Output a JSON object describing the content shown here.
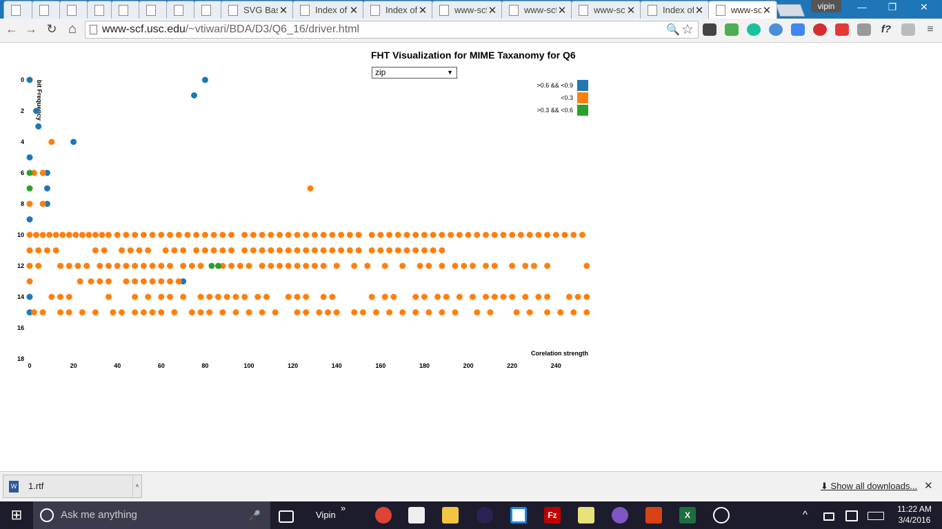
{
  "browser": {
    "tabs": [
      {
        "label": "",
        "active": false
      },
      {
        "label": "",
        "active": false
      },
      {
        "label": "",
        "active": false
      },
      {
        "label": "",
        "active": false
      },
      {
        "label": "",
        "active": false
      },
      {
        "label": "",
        "active": false
      },
      {
        "label": "",
        "active": false
      },
      {
        "label": "",
        "active": false
      },
      {
        "label": "SVG Basi",
        "active": false
      },
      {
        "label": "Index of",
        "active": false
      },
      {
        "label": "Index of",
        "active": false
      },
      {
        "label": "www-scf",
        "active": false
      },
      {
        "label": "www-scf",
        "active": false
      },
      {
        "label": "www-scf",
        "active": false
      },
      {
        "label": "Index of",
        "active": false
      },
      {
        "label": "www-scf",
        "active": true
      }
    ],
    "close_glyph": "✕",
    "profile": "vipin",
    "window_controls": {
      "minimize": "—",
      "maximize": "❐",
      "close": "✕"
    },
    "nav": {
      "back": "←",
      "forward": "→",
      "reload": "↻",
      "home": "⌂"
    },
    "url_host": "www-scf.usc.edu",
    "url_path": "/~vtiwari/BDA/D3/Q6_16/driver.html",
    "omnibox_icons": {
      "zoom": "🔍",
      "star": "☆"
    },
    "extensions": [
      "pocket-icon",
      "drive-icon",
      "grammarly-icon",
      "clock-extension-icon",
      "translate-icon",
      "opera-icon",
      "adblock-icon",
      "dropper-icon",
      "formula-icon",
      "notes-icon",
      "menu-icon"
    ],
    "formula_ext_label": "f?"
  },
  "page": {
    "title": "FHT Visualization for MIME Taxanomy for Q6",
    "select": {
      "value": "zip",
      "arrow": "▼"
    }
  },
  "chart_data": {
    "type": "scatter",
    "xlabel": "Corelation strength",
    "ylabel": "bit Frequency",
    "xlim": [
      0,
      255
    ],
    "ylim": [
      0,
      18
    ],
    "y_inverted": true,
    "xticks": [
      "0",
      "20",
      "40",
      "60",
      "80",
      "100",
      "120",
      "140",
      "160",
      "180",
      "200",
      "220",
      "240"
    ],
    "yticks": [
      "0",
      "2",
      "4",
      "6",
      "8",
      "10",
      "12",
      "14",
      "16",
      "18"
    ],
    "legend": [
      {
        "label": ">0.6 && <0.9",
        "color": "#1f77b4"
      },
      {
        "label": "<0.3",
        "color": "#ff7f0e"
      },
      {
        "label": ">0.3 && <0.6",
        "color": "#2ca02c"
      }
    ],
    "series": [
      {
        "name": ">0.6 && <0.9",
        "color": "#1f77b4",
        "points": [
          [
            0,
            0
          ],
          [
            80,
            0
          ],
          [
            75,
            1
          ],
          [
            3,
            2
          ],
          [
            4,
            3
          ],
          [
            20,
            4
          ],
          [
            0,
            5
          ],
          [
            8,
            6
          ],
          [
            8,
            7
          ],
          [
            8,
            8
          ],
          [
            0,
            9
          ],
          [
            70,
            13
          ],
          [
            0,
            14
          ],
          [
            0,
            15
          ]
        ]
      },
      {
        "name": "<0.3",
        "color": "#ff7f0e",
        "points": [
          [
            10,
            4
          ],
          [
            2,
            6
          ],
          [
            6,
            6
          ],
          [
            0,
            8
          ],
          [
            6,
            8
          ],
          [
            128,
            7
          ],
          [
            0,
            10
          ],
          [
            3,
            10
          ],
          [
            6,
            10
          ],
          [
            9,
            10
          ],
          [
            12,
            10
          ],
          [
            15,
            10
          ],
          [
            18,
            10
          ],
          [
            21,
            10
          ],
          [
            24,
            10
          ],
          [
            27,
            10
          ],
          [
            30,
            10
          ],
          [
            33,
            10
          ],
          [
            36,
            10
          ],
          [
            40,
            10
          ],
          [
            44,
            10
          ],
          [
            48,
            10
          ],
          [
            52,
            10
          ],
          [
            56,
            10
          ],
          [
            60,
            10
          ],
          [
            64,
            10
          ],
          [
            68,
            10
          ],
          [
            72,
            10
          ],
          [
            76,
            10
          ],
          [
            80,
            10
          ],
          [
            84,
            10
          ],
          [
            88,
            10
          ],
          [
            92,
            10
          ],
          [
            98,
            10
          ],
          [
            102,
            10
          ],
          [
            106,
            10
          ],
          [
            110,
            10
          ],
          [
            114,
            10
          ],
          [
            118,
            10
          ],
          [
            122,
            10
          ],
          [
            126,
            10
          ],
          [
            130,
            10
          ],
          [
            134,
            10
          ],
          [
            138,
            10
          ],
          [
            142,
            10
          ],
          [
            146,
            10
          ],
          [
            150,
            10
          ],
          [
            156,
            10
          ],
          [
            160,
            10
          ],
          [
            164,
            10
          ],
          [
            168,
            10
          ],
          [
            172,
            10
          ],
          [
            176,
            10
          ],
          [
            180,
            10
          ],
          [
            184,
            10
          ],
          [
            188,
            10
          ],
          [
            192,
            10
          ],
          [
            196,
            10
          ],
          [
            200,
            10
          ],
          [
            204,
            10
          ],
          [
            208,
            10
          ],
          [
            212,
            10
          ],
          [
            216,
            10
          ],
          [
            220,
            10
          ],
          [
            224,
            10
          ],
          [
            228,
            10
          ],
          [
            232,
            10
          ],
          [
            236,
            10
          ],
          [
            240,
            10
          ],
          [
            244,
            10
          ],
          [
            248,
            10
          ],
          [
            252,
            10
          ],
          [
            0,
            11
          ],
          [
            4,
            11
          ],
          [
            8,
            11
          ],
          [
            12,
            11
          ],
          [
            30,
            11
          ],
          [
            34,
            11
          ],
          [
            42,
            11
          ],
          [
            46,
            11
          ],
          [
            50,
            11
          ],
          [
            54,
            11
          ],
          [
            62,
            11
          ],
          [
            66,
            11
          ],
          [
            70,
            11
          ],
          [
            76,
            11
          ],
          [
            80,
            11
          ],
          [
            84,
            11
          ],
          [
            88,
            11
          ],
          [
            92,
            11
          ],
          [
            98,
            11
          ],
          [
            102,
            11
          ],
          [
            106,
            11
          ],
          [
            110,
            11
          ],
          [
            114,
            11
          ],
          [
            118,
            11
          ],
          [
            122,
            11
          ],
          [
            126,
            11
          ],
          [
            130,
            11
          ],
          [
            134,
            11
          ],
          [
            138,
            11
          ],
          [
            142,
            11
          ],
          [
            146,
            11
          ],
          [
            150,
            11
          ],
          [
            156,
            11
          ],
          [
            160,
            11
          ],
          [
            164,
            11
          ],
          [
            168,
            11
          ],
          [
            172,
            11
          ],
          [
            176,
            11
          ],
          [
            180,
            11
          ],
          [
            184,
            11
          ],
          [
            188,
            11
          ],
          [
            0,
            12
          ],
          [
            4,
            12
          ],
          [
            14,
            12
          ],
          [
            18,
            12
          ],
          [
            22,
            12
          ],
          [
            26,
            12
          ],
          [
            32,
            12
          ],
          [
            36,
            12
          ],
          [
            40,
            12
          ],
          [
            44,
            12
          ],
          [
            48,
            12
          ],
          [
            52,
            12
          ],
          [
            56,
            12
          ],
          [
            60,
            12
          ],
          [
            64,
            12
          ],
          [
            70,
            12
          ],
          [
            74,
            12
          ],
          [
            78,
            12
          ],
          [
            88,
            12
          ],
          [
            92,
            12
          ],
          [
            96,
            12
          ],
          [
            100,
            12
          ],
          [
            106,
            12
          ],
          [
            110,
            12
          ],
          [
            114,
            12
          ],
          [
            118,
            12
          ],
          [
            122,
            12
          ],
          [
            126,
            12
          ],
          [
            130,
            12
          ],
          [
            134,
            12
          ],
          [
            140,
            12
          ],
          [
            148,
            12
          ],
          [
            154,
            12
          ],
          [
            162,
            12
          ],
          [
            170,
            12
          ],
          [
            178,
            12
          ],
          [
            182,
            12
          ],
          [
            188,
            12
          ],
          [
            194,
            12
          ],
          [
            198,
            12
          ],
          [
            202,
            12
          ],
          [
            208,
            12
          ],
          [
            212,
            12
          ],
          [
            220,
            12
          ],
          [
            226,
            12
          ],
          [
            230,
            12
          ],
          [
            236,
            12
          ],
          [
            254,
            12
          ],
          [
            0,
            13
          ],
          [
            23,
            13
          ],
          [
            28,
            13
          ],
          [
            32,
            13
          ],
          [
            36,
            13
          ],
          [
            44,
            13
          ],
          [
            48,
            13
          ],
          [
            52,
            13
          ],
          [
            56,
            13
          ],
          [
            60,
            13
          ],
          [
            64,
            13
          ],
          [
            68,
            13
          ],
          [
            10,
            14
          ],
          [
            14,
            14
          ],
          [
            18,
            14
          ],
          [
            36,
            14
          ],
          [
            48,
            14
          ],
          [
            54,
            14
          ],
          [
            60,
            14
          ],
          [
            64,
            14
          ],
          [
            70,
            14
          ],
          [
            78,
            14
          ],
          [
            82,
            14
          ],
          [
            86,
            14
          ],
          [
            90,
            14
          ],
          [
            94,
            14
          ],
          [
            98,
            14
          ],
          [
            104,
            14
          ],
          [
            108,
            14
          ],
          [
            118,
            14
          ],
          [
            122,
            14
          ],
          [
            126,
            14
          ],
          [
            134,
            14
          ],
          [
            138,
            14
          ],
          [
            156,
            14
          ],
          [
            162,
            14
          ],
          [
            166,
            14
          ],
          [
            176,
            14
          ],
          [
            180,
            14
          ],
          [
            186,
            14
          ],
          [
            190,
            14
          ],
          [
            196,
            14
          ],
          [
            202,
            14
          ],
          [
            208,
            14
          ],
          [
            212,
            14
          ],
          [
            216,
            14
          ],
          [
            220,
            14
          ],
          [
            226,
            14
          ],
          [
            232,
            14
          ],
          [
            236,
            14
          ],
          [
            246,
            14
          ],
          [
            250,
            14
          ],
          [
            254,
            14
          ],
          [
            2,
            15
          ],
          [
            6,
            15
          ],
          [
            14,
            15
          ],
          [
            18,
            15
          ],
          [
            24,
            15
          ],
          [
            30,
            15
          ],
          [
            38,
            15
          ],
          [
            42,
            15
          ],
          [
            48,
            15
          ],
          [
            52,
            15
          ],
          [
            56,
            15
          ],
          [
            60,
            15
          ],
          [
            66,
            15
          ],
          [
            74,
            15
          ],
          [
            78,
            15
          ],
          [
            82,
            15
          ],
          [
            88,
            15
          ],
          [
            94,
            15
          ],
          [
            100,
            15
          ],
          [
            106,
            15
          ],
          [
            112,
            15
          ],
          [
            122,
            15
          ],
          [
            126,
            15
          ],
          [
            132,
            15
          ],
          [
            136,
            15
          ],
          [
            140,
            15
          ],
          [
            148,
            15
          ],
          [
            152,
            15
          ],
          [
            158,
            15
          ],
          [
            164,
            15
          ],
          [
            170,
            15
          ],
          [
            176,
            15
          ],
          [
            182,
            15
          ],
          [
            188,
            15
          ],
          [
            194,
            15
          ],
          [
            204,
            15
          ],
          [
            210,
            15
          ],
          [
            222,
            15
          ],
          [
            228,
            15
          ],
          [
            236,
            15
          ],
          [
            242,
            15
          ],
          [
            248,
            15
          ],
          [
            254,
            15
          ]
        ]
      },
      {
        "name": ">0.3 && <0.6",
        "color": "#2ca02c",
        "points": [
          [
            0,
            6
          ],
          [
            0,
            7
          ],
          [
            83,
            12
          ],
          [
            86,
            12
          ]
        ]
      }
    ]
  },
  "downloads": {
    "item": "1.rtf",
    "doc_icon_letter": "W",
    "item_arrow": "˄",
    "show_all": "Show all downloads...",
    "download_icon": "⬇",
    "close": "✕"
  },
  "taskbar": {
    "start_glyph": "⊞",
    "search_placeholder": "Ask me anything",
    "mic_glyph": "🎤",
    "user": "Vipin",
    "overflow": "»",
    "tray_chevron": "^",
    "app_icons": {
      "filezilla": "Fz",
      "excel": "X"
    },
    "time": "11:22 AM",
    "date": "3/4/2016"
  }
}
